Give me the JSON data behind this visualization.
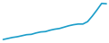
{
  "values": [
    10.0,
    10.3,
    10.6,
    10.8,
    11.1,
    11.4,
    11.5,
    11.9,
    12.2,
    12.3,
    12.7,
    13.0,
    13.2,
    13.6,
    14.0,
    14.3,
    14.5,
    14.5,
    15.2,
    16.8,
    18.6,
    20.5,
    20.4
  ],
  "line_color": "#1a9dc9",
  "background_color": "#ffffff",
  "linewidth": 1.2
}
